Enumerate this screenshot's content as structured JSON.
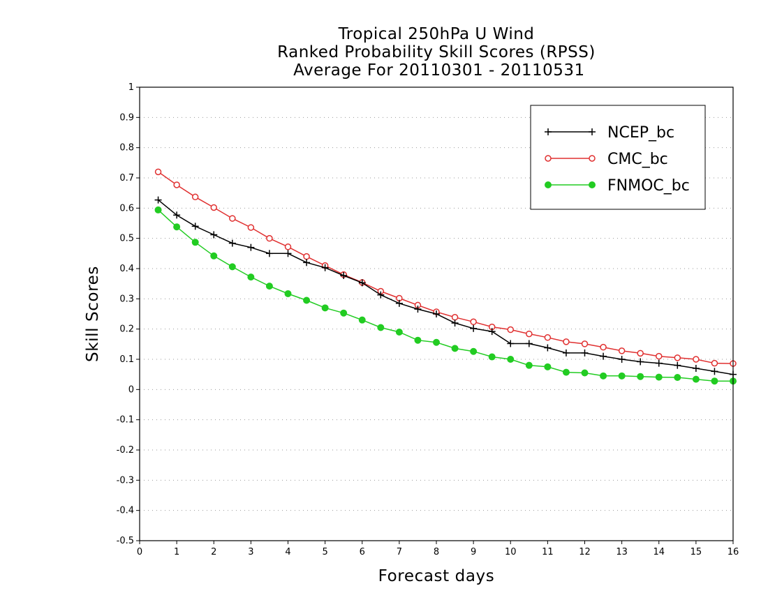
{
  "chart_data": {
    "type": "line",
    "title_lines": [
      "Tropical 250hPa U Wind",
      "Ranked Probability Skill Scores (RPSS)",
      " Average For 20110301 - 20110531"
    ],
    "xlabel": "Forecast days",
    "ylabel": "Skill Scores",
    "xlim": [
      0,
      16
    ],
    "ylim": [
      -0.5,
      1
    ],
    "x_ticks": [
      0,
      1,
      2,
      3,
      4,
      5,
      6,
      7,
      8,
      9,
      10,
      11,
      12,
      13,
      14,
      15,
      16
    ],
    "y_ticks": [
      -0.5,
      -0.4,
      -0.3,
      -0.2,
      -0.1,
      0,
      0.1,
      0.2,
      0.3,
      0.4,
      0.5,
      0.6,
      0.7,
      0.8,
      0.9,
      1
    ],
    "y_tick_labels": [
      "-0.5",
      "-0.4",
      "-0.3",
      "-0.2",
      "-0.1",
      "0",
      "0.1",
      "0.2",
      "0.3",
      "0.4",
      "0.5",
      "0.6",
      "0.7",
      "0.8",
      "0.9",
      "1"
    ],
    "grid": "horizontal dotted",
    "legend_position": "top-right",
    "x": [
      0.5,
      1,
      1.5,
      2,
      2.5,
      3,
      3.5,
      4,
      4.5,
      5,
      5.5,
      6,
      6.5,
      7,
      7.5,
      8,
      8.5,
      9,
      9.5,
      10,
      10.5,
      11,
      11.5,
      12,
      12.5,
      13,
      13.5,
      14,
      14.5,
      15,
      15.5,
      16
    ],
    "series": [
      {
        "name": "NCEP_bc",
        "color": "#000000",
        "marker": "plus",
        "values": [
          0.627,
          0.577,
          0.54,
          0.512,
          0.484,
          0.47,
          0.45,
          0.45,
          0.42,
          0.403,
          0.377,
          0.353,
          0.313,
          0.285,
          0.266,
          0.25,
          0.22,
          0.202,
          0.192,
          0.152,
          0.152,
          0.138,
          0.121,
          0.121,
          0.11,
          0.1,
          0.092,
          0.087,
          0.08,
          0.07,
          0.06,
          0.05
        ]
      },
      {
        "name": "CMC_bc",
        "color": "#e03030",
        "marker": "open-circle",
        "values": [
          0.72,
          0.677,
          0.637,
          0.602,
          0.566,
          0.536,
          0.5,
          0.472,
          0.44,
          0.41,
          0.38,
          0.354,
          0.325,
          0.302,
          0.279,
          0.257,
          0.239,
          0.224,
          0.207,
          0.198,
          0.184,
          0.172,
          0.158,
          0.151,
          0.14,
          0.128,
          0.12,
          0.11,
          0.105,
          0.1,
          0.087,
          0.086
        ]
      },
      {
        "name": "FNMOC_bc",
        "color": "#22cc22",
        "marker": "filled-circle",
        "values": [
          0.594,
          0.538,
          0.487,
          0.442,
          0.406,
          0.372,
          0.342,
          0.317,
          0.295,
          0.27,
          0.253,
          0.23,
          0.205,
          0.19,
          0.163,
          0.156,
          0.136,
          0.126,
          0.108,
          0.1,
          0.08,
          0.075,
          0.057,
          0.055,
          0.045,
          0.045,
          0.043,
          0.041,
          0.04,
          0.034,
          0.028,
          0.028
        ]
      }
    ]
  }
}
